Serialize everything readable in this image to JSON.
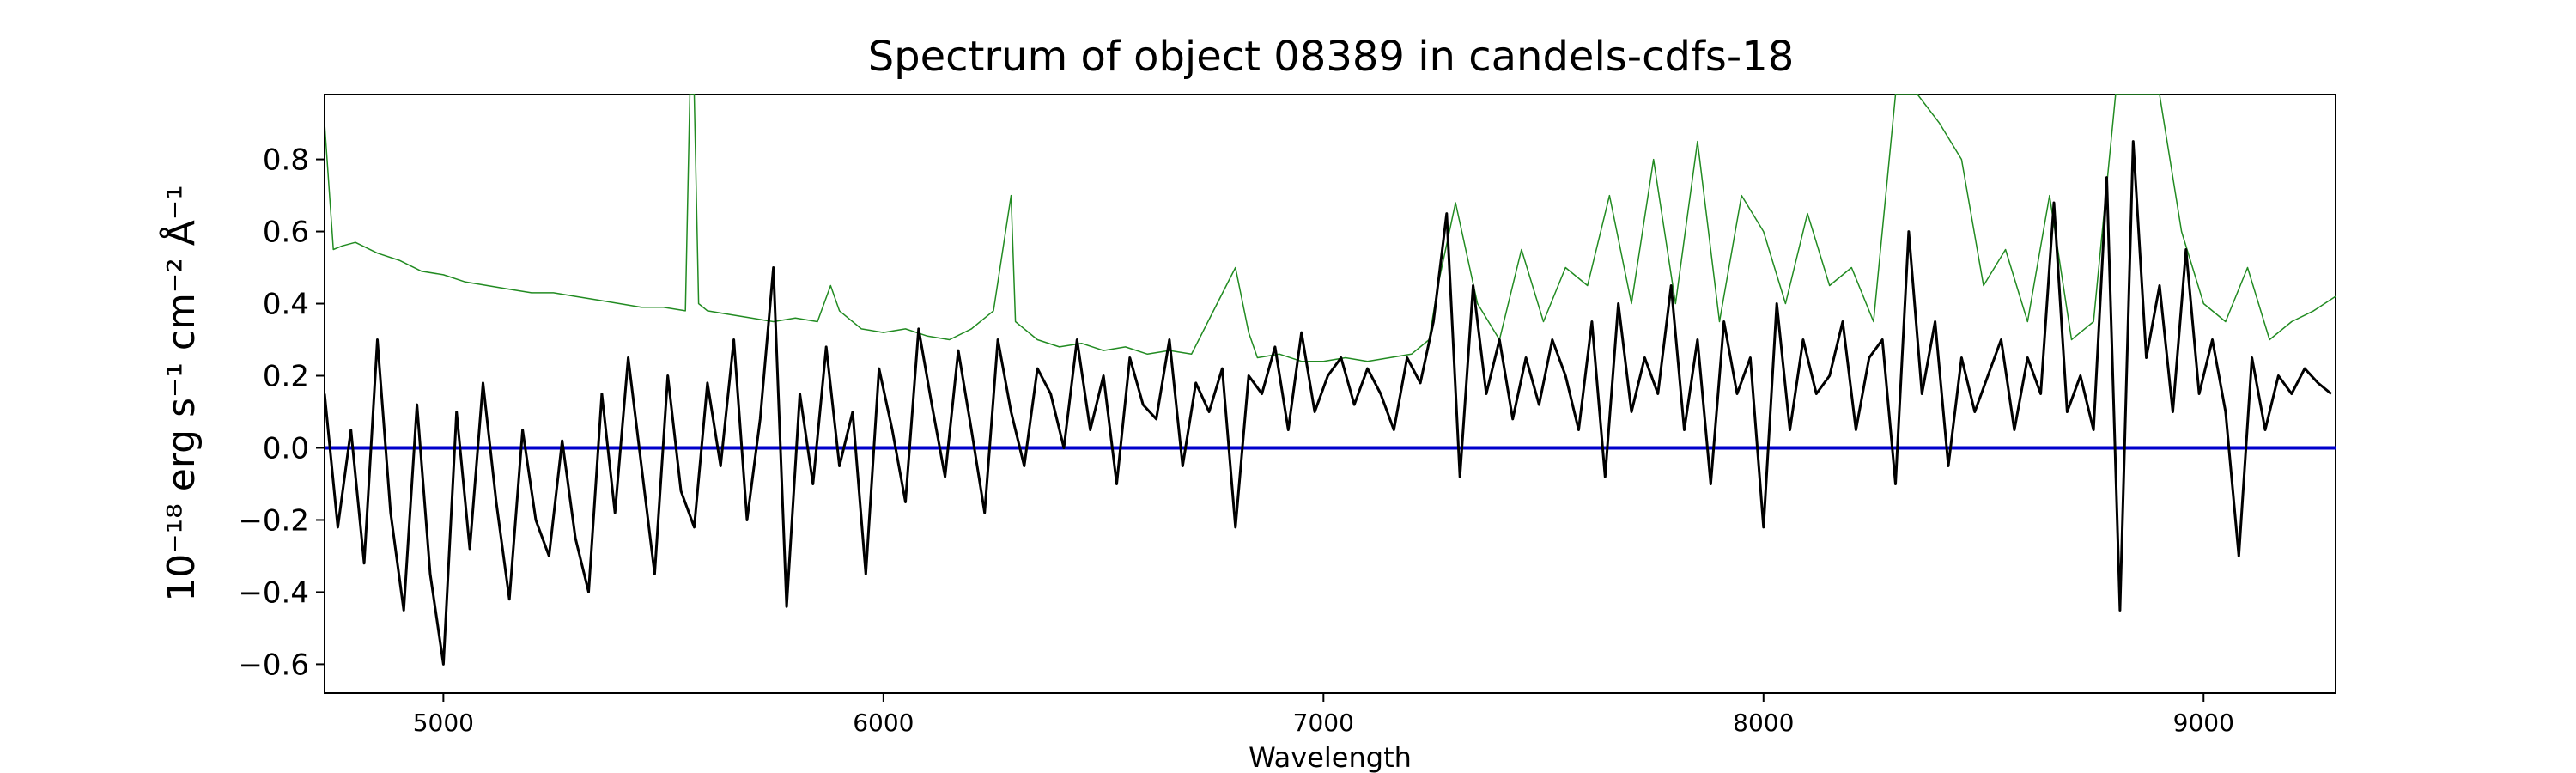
{
  "chart_data": {
    "type": "line",
    "title": "Spectrum of object 08389 in candels-cdfs-18",
    "xlabel": "Wavelength",
    "ylabel": "10⁻¹⁸ erg s⁻¹ cm⁻² Å⁻¹",
    "xlim": [
      4730,
      9300
    ],
    "ylim": [
      -0.68,
      0.98
    ],
    "x_ticks": [
      5000,
      6000,
      7000,
      8000,
      9000
    ],
    "y_ticks": [
      -0.6,
      -0.4,
      -0.2,
      0.0,
      0.2,
      0.4,
      0.6,
      0.8
    ],
    "y_tick_labels": [
      "−0.6",
      "−0.4",
      "−0.2",
      "0.0",
      "0.2",
      "0.4",
      "0.6",
      "0.8"
    ],
    "grid": false,
    "colors": {
      "flux": "#000000",
      "error": "#228B22",
      "zero": "#0000CC"
    },
    "series": [
      {
        "role": "flux",
        "x": [
          4730,
          4760,
          4790,
          4820,
          4850,
          4880,
          4910,
          4940,
          4970,
          5000,
          5030,
          5060,
          5090,
          5120,
          5150,
          5180,
          5210,
          5240,
          5270,
          5300,
          5330,
          5360,
          5390,
          5420,
          5450,
          5480,
          5510,
          5540,
          5570,
          5600,
          5630,
          5660,
          5690,
          5720,
          5750,
          5780,
          5810,
          5840,
          5870,
          5900,
          5930,
          5960,
          5990,
          6020,
          6050,
          6080,
          6110,
          6140,
          6170,
          6200,
          6230,
          6260,
          6290,
          6320,
          6350,
          6380,
          6410,
          6440,
          6470,
          6500,
          6530,
          6560,
          6590,
          6620,
          6650,
          6680,
          6710,
          6740,
          6770,
          6800,
          6830,
          6860,
          6890,
          6920,
          6950,
          6980,
          7010,
          7040,
          7070,
          7100,
          7130,
          7160,
          7190,
          7220,
          7250,
          7280,
          7310,
          7340,
          7370,
          7400,
          7430,
          7460,
          7490,
          7520,
          7550,
          7580,
          7610,
          7640,
          7670,
          7700,
          7730,
          7760,
          7790,
          7820,
          7850,
          7880,
          7910,
          7940,
          7970,
          8000,
          8030,
          8060,
          8090,
          8120,
          8150,
          8180,
          8210,
          8240,
          8270,
          8300,
          8330,
          8360,
          8390,
          8420,
          8450,
          8480,
          8510,
          8540,
          8570,
          8600,
          8630,
          8660,
          8690,
          8720,
          8750,
          8780,
          8810,
          8840,
          8870,
          8900,
          8930,
          8960,
          8990,
          9020,
          9050,
          9080,
          9110,
          9140,
          9170,
          9200,
          9230,
          9260,
          9290
        ],
        "y": [
          0.15,
          -0.22,
          0.05,
          -0.32,
          0.3,
          -0.18,
          -0.45,
          0.12,
          -0.35,
          -0.6,
          0.1,
          -0.28,
          0.18,
          -0.15,
          -0.42,
          0.05,
          -0.2,
          -0.3,
          0.02,
          -0.25,
          -0.4,
          0.15,
          -0.18,
          0.25,
          -0.05,
          -0.35,
          0.2,
          -0.12,
          -0.22,
          0.18,
          -0.05,
          0.3,
          -0.2,
          0.08,
          0.5,
          -0.44,
          0.15,
          -0.1,
          0.28,
          -0.05,
          0.1,
          -0.35,
          0.22,
          0.05,
          -0.15,
          0.33,
          0.12,
          -0.08,
          0.27,
          0.05,
          -0.18,
          0.3,
          0.1,
          -0.05,
          0.22,
          0.15,
          0.0,
          0.3,
          0.05,
          0.2,
          -0.1,
          0.25,
          0.12,
          0.08,
          0.3,
          -0.05,
          0.18,
          0.1,
          0.22,
          -0.22,
          0.2,
          0.15,
          0.28,
          0.05,
          0.32,
          0.1,
          0.2,
          0.25,
          0.12,
          0.22,
          0.15,
          0.05,
          0.25,
          0.18,
          0.35,
          0.65,
          -0.08,
          0.45,
          0.15,
          0.3,
          0.08,
          0.25,
          0.12,
          0.3,
          0.2,
          0.05,
          0.35,
          -0.08,
          0.4,
          0.1,
          0.25,
          0.15,
          0.45,
          0.05,
          0.3,
          -0.1,
          0.35,
          0.15,
          0.25,
          -0.22,
          0.4,
          0.05,
          0.3,
          0.15,
          0.2,
          0.35,
          0.05,
          0.25,
          0.3,
          -0.1,
          0.6,
          0.15,
          0.35,
          -0.05,
          0.25,
          0.1,
          0.2,
          0.3,
          0.05,
          0.25,
          0.15,
          0.68,
          0.1,
          0.2,
          0.05,
          0.75,
          -0.45,
          0.85,
          0.25,
          0.45,
          0.1,
          0.55,
          0.15,
          0.3,
          0.1,
          -0.3,
          0.25,
          0.05,
          0.2,
          0.15,
          0.22,
          0.18,
          0.15
        ]
      },
      {
        "role": "error",
        "x": [
          4730,
          4750,
          4770,
          4800,
          4850,
          4900,
          4950,
          5000,
          5050,
          5100,
          5150,
          5200,
          5250,
          5300,
          5350,
          5400,
          5450,
          5500,
          5550,
          5560,
          5570,
          5580,
          5600,
          5650,
          5700,
          5750,
          5800,
          5850,
          5880,
          5900,
          5950,
          6000,
          6050,
          6100,
          6150,
          6200,
          6250,
          6290,
          6300,
          6350,
          6400,
          6450,
          6500,
          6550,
          6600,
          6650,
          6700,
          6750,
          6800,
          6830,
          6850,
          6900,
          6950,
          7000,
          7050,
          7100,
          7150,
          7200,
          7240,
          7260,
          7300,
          7350,
          7400,
          7450,
          7500,
          7550,
          7600,
          7650,
          7700,
          7750,
          7800,
          7850,
          7900,
          7950,
          8000,
          8050,
          8100,
          8150,
          8200,
          8250,
          8300,
          8350,
          8400,
          8450,
          8500,
          8550,
          8600,
          8650,
          8700,
          8750,
          8800,
          8850,
          8900,
          8950,
          9000,
          9050,
          9100,
          9150,
          9200,
          9250,
          9300
        ],
        "y": [
          0.9,
          0.55,
          0.56,
          0.57,
          0.54,
          0.52,
          0.49,
          0.48,
          0.46,
          0.45,
          0.44,
          0.43,
          0.43,
          0.42,
          0.41,
          0.4,
          0.39,
          0.39,
          0.38,
          0.98,
          0.98,
          0.4,
          0.38,
          0.37,
          0.36,
          0.35,
          0.36,
          0.35,
          0.45,
          0.38,
          0.33,
          0.32,
          0.33,
          0.31,
          0.3,
          0.33,
          0.38,
          0.7,
          0.35,
          0.3,
          0.28,
          0.29,
          0.27,
          0.28,
          0.26,
          0.27,
          0.26,
          0.38,
          0.5,
          0.32,
          0.25,
          0.26,
          0.24,
          0.24,
          0.25,
          0.24,
          0.25,
          0.26,
          0.3,
          0.45,
          0.68,
          0.4,
          0.3,
          0.55,
          0.35,
          0.5,
          0.45,
          0.7,
          0.4,
          0.8,
          0.4,
          0.85,
          0.35,
          0.7,
          0.6,
          0.4,
          0.65,
          0.45,
          0.5,
          0.35,
          0.98,
          0.98,
          0.9,
          0.8,
          0.45,
          0.55,
          0.35,
          0.7,
          0.3,
          0.35,
          0.98,
          0.98,
          0.98,
          0.6,
          0.4,
          0.35,
          0.5,
          0.3,
          0.35,
          0.38,
          0.42
        ]
      },
      {
        "role": "zero",
        "x": [
          4730,
          9300
        ],
        "y": [
          0.0,
          0.0
        ]
      }
    ]
  }
}
